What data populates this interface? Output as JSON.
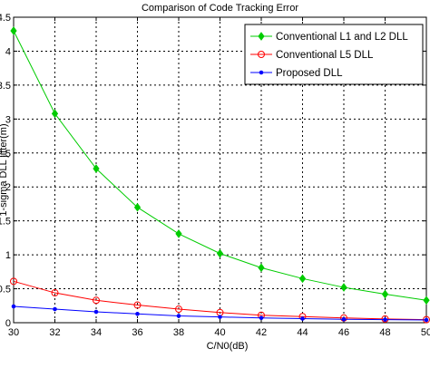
{
  "chart_data": {
    "type": "line",
    "title": "Comparison of Code Tracking Error",
    "xlabel": "C/N0(dB)",
    "ylabel": "1-sigma DLL jitter(m)",
    "xlim": [
      30,
      50
    ],
    "ylim": [
      0,
      4.5
    ],
    "xticks": [
      "30",
      "32",
      "34",
      "36",
      "38",
      "40",
      "42",
      "44",
      "46",
      "48",
      "50"
    ],
    "yticks": [
      "0",
      "0.5",
      "1",
      "1.5",
      "2",
      "2.5",
      "3",
      "3.5",
      "4",
      "4.5"
    ],
    "grid": true,
    "legend_position": "top-right",
    "x": [
      30,
      32,
      34,
      36,
      38,
      40,
      42,
      44,
      46,
      48,
      50
    ],
    "series": [
      {
        "name": "Conventional L1 and L2 DLL",
        "color": "#00cc00",
        "marker": "diamond",
        "values": [
          4.3,
          3.08,
          2.27,
          1.7,
          1.31,
          1.02,
          0.81,
          0.65,
          0.52,
          0.42,
          0.33
        ]
      },
      {
        "name": "Conventional L5 DLL",
        "color": "#ff0000",
        "marker": "circle",
        "values": [
          0.61,
          0.44,
          0.33,
          0.26,
          0.2,
          0.15,
          0.11,
          0.09,
          0.07,
          0.055,
          0.045
        ]
      },
      {
        "name": "Proposed DLL",
        "color": "#0000ff",
        "marker": "dot",
        "values": [
          0.24,
          0.2,
          0.16,
          0.13,
          0.1,
          0.085,
          0.07,
          0.06,
          0.05,
          0.045,
          0.04
        ]
      }
    ]
  }
}
